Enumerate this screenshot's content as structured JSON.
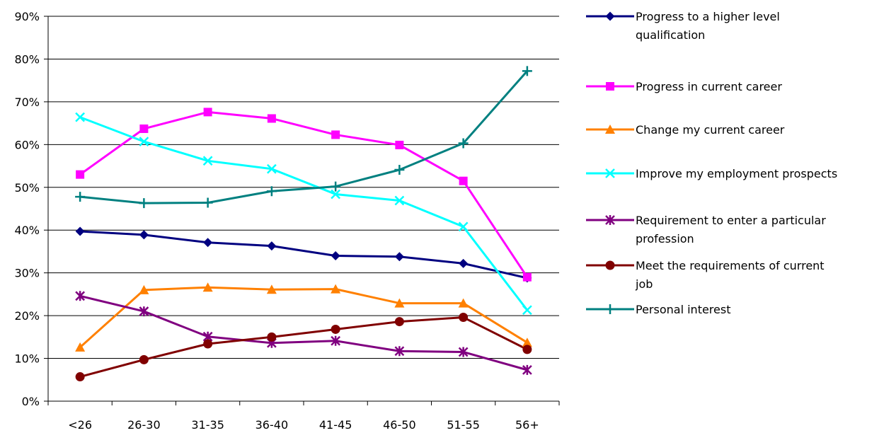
{
  "chart_data": {
    "type": "line",
    "categories": [
      "<26",
      "26-30",
      "31-35",
      "36-40",
      "41-45",
      "46-50",
      "51-55",
      "56+"
    ],
    "y_ticks": [
      "0%",
      "10%",
      "20%",
      "30%",
      "40%",
      "50%",
      "60%",
      "70%",
      "80%",
      "90%"
    ],
    "ylim": [
      0,
      90
    ],
    "grid": true,
    "legend_position": "right",
    "series": [
      {
        "name": "Progress to a higher level qualification",
        "legend_lines": [
          "Progress to a higher level",
          "qualification"
        ],
        "color": "#000080",
        "marker": "diamond",
        "values": [
          39.7,
          38.9,
          37.1,
          36.3,
          34.0,
          33.8,
          32.2,
          28.8
        ]
      },
      {
        "name": "Progress in current career",
        "legend_lines": [
          "Progress in current career"
        ],
        "color": "#FF00FF",
        "marker": "square",
        "values": [
          53.0,
          63.7,
          67.6,
          66.1,
          62.3,
          59.9,
          51.5,
          29.0
        ]
      },
      {
        "name": "Change my current career",
        "legend_lines": [
          "Change my current career"
        ],
        "color": "#FF8000",
        "marker": "triangle",
        "values": [
          12.6,
          26.0,
          26.6,
          26.1,
          26.2,
          22.9,
          22.9,
          13.7
        ]
      },
      {
        "name": "Improve my employment prospects",
        "legend_lines": [
          "Improve my employment prospects"
        ],
        "color": "#00FFFF",
        "marker": "x",
        "values": [
          66.4,
          60.7,
          56.2,
          54.3,
          48.4,
          46.9,
          40.8,
          21.3
        ]
      },
      {
        "name": "Requirement to enter a particular profession",
        "legend_lines": [
          "Requirement to enter a particular",
          "profession"
        ],
        "color": "#800080",
        "marker": "star",
        "values": [
          24.6,
          21.0,
          15.1,
          13.6,
          14.1,
          11.7,
          11.5,
          7.3
        ]
      },
      {
        "name": "Meet the requirements of  current job",
        "legend_lines": [
          "Meet the requirements of  current",
          "job"
        ],
        "color": "#800000",
        "marker": "circle",
        "values": [
          5.7,
          9.7,
          13.4,
          15.0,
          16.8,
          18.6,
          19.6,
          12.1
        ]
      },
      {
        "name": "Personal interest",
        "legend_lines": [
          "Personal interest"
        ],
        "color": "#008080",
        "marker": "plus",
        "values": [
          47.8,
          46.3,
          46.4,
          49.1,
          50.2,
          54.1,
          60.3,
          77.2
        ]
      }
    ]
  }
}
